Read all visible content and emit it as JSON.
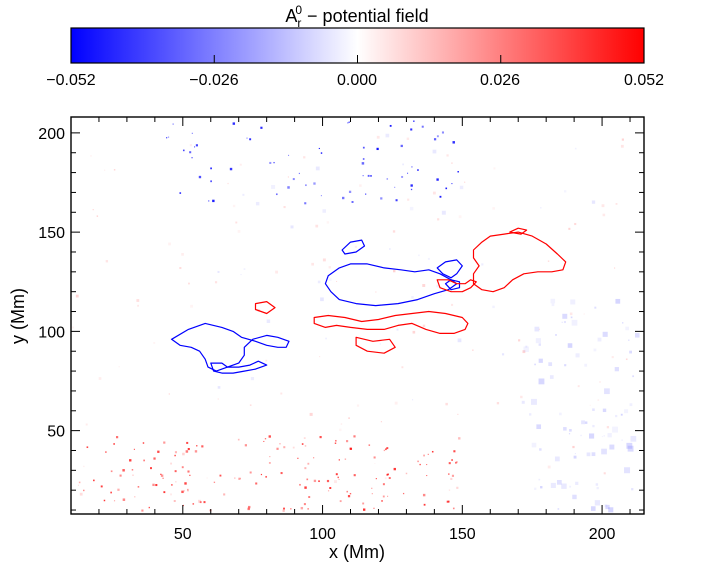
{
  "colorbar": {
    "title_main": "A",
    "title_sub": "r",
    "title_sup": "0",
    "title_rest": "  − potential field",
    "tick_labels": [
      "−0.052",
      "−0.026",
      "0.000",
      "0.026",
      "0.052"
    ],
    "colors": {
      "negative": "#0000ff",
      "zero": "#ffffff",
      "positive": "#ff0000"
    }
  },
  "chart_data": {
    "type": "heatmap",
    "title": "A_r^0 − potential field",
    "xlabel": "x (Mm)",
    "ylabel": "y (Mm)",
    "xlim": [
      10,
      215
    ],
    "ylim": [
      8,
      208
    ],
    "xticks": [
      50,
      100,
      150,
      200
    ],
    "yticks": [
      50,
      100,
      150,
      200
    ],
    "xtick_labels": [
      "50",
      "100",
      "150",
      "200"
    ],
    "ytick_labels": [
      "50",
      "100",
      "150",
      "200"
    ],
    "color_range": [
      -0.052,
      0.052
    ],
    "colormap": "blue-white-red",
    "colorbar_ticks": [
      -0.052,
      -0.026,
      0.0,
      0.026,
      0.052
    ],
    "grid": false,
    "contours": [
      {
        "polarity": "negative",
        "color": "#0000ff",
        "paths": [
          [
            [
              46,
              96
            ],
            [
              52,
              101
            ],
            [
              58,
              104
            ],
            [
              64,
              102
            ],
            [
              68,
              100
            ],
            [
              71,
              97
            ],
            [
              76,
              95
            ],
            [
              80,
              93
            ],
            [
              84,
              92
            ],
            [
              87,
              92
            ],
            [
              88,
              95
            ],
            [
              84,
              97
            ],
            [
              80,
              98
            ],
            [
              75,
              96
            ],
            [
              72,
              92
            ],
            [
              72,
              88
            ],
            [
              70,
              84
            ],
            [
              66,
              82
            ],
            [
              62,
              80
            ],
            [
              59,
              82
            ],
            [
              58,
              86
            ],
            [
              56,
              90
            ],
            [
              53,
              92
            ],
            [
              49,
              93
            ],
            [
              46,
              96
            ]
          ],
          [
            [
              60,
              84
            ],
            [
              64,
              84
            ],
            [
              66,
              82
            ],
            [
              70,
              82
            ],
            [
              74,
              83
            ],
            [
              77,
              85
            ],
            [
              80,
              83
            ],
            [
              76,
              81
            ],
            [
              72,
              80
            ],
            [
              68,
              79
            ],
            [
              64,
              79
            ],
            [
              61,
              80
            ],
            [
              60,
              84
            ]
          ],
          [
            [
              102,
              128
            ],
            [
              106,
              132
            ],
            [
              110,
              134
            ],
            [
              116,
              134
            ],
            [
              122,
              132
            ],
            [
              128,
              131
            ],
            [
              133,
              130
            ],
            [
              138,
              131
            ],
            [
              142,
              129
            ],
            [
              146,
              126
            ],
            [
              148,
              124
            ],
            [
              145,
              121
            ],
            [
              140,
              119
            ],
            [
              134,
              116
            ],
            [
              127,
              114
            ],
            [
              119,
              113
            ],
            [
              112,
              114
            ],
            [
              106,
              116
            ],
            [
              103,
              120
            ],
            [
              101,
              124
            ],
            [
              102,
              128
            ]
          ],
          [
            [
              107,
              141
            ],
            [
              110,
              145
            ],
            [
              114,
              146
            ],
            [
              115,
              143
            ],
            [
              112,
              140
            ],
            [
              108,
              139
            ],
            [
              107,
              141
            ]
          ],
          [
            [
              141,
              132
            ],
            [
              144,
              135
            ],
            [
              148,
              136
            ],
            [
              150,
              133
            ],
            [
              148,
              129
            ],
            [
              146,
              127
            ],
            [
              143,
              129
            ],
            [
              141,
              132
            ]
          ],
          [
            [
              144,
              124
            ],
            [
              146,
              126
            ],
            [
              149,
              125
            ],
            [
              149,
              122
            ],
            [
              146,
              121
            ],
            [
              144,
              124
            ]
          ]
        ]
      },
      {
        "polarity": "positive",
        "color": "#ff0000",
        "paths": [
          [
            [
              97,
              107
            ],
            [
              102,
              108
            ],
            [
              108,
              107
            ],
            [
              114,
              105
            ],
            [
              120,
              106
            ],
            [
              126,
              108
            ],
            [
              132,
              109
            ],
            [
              138,
              110
            ],
            [
              144,
              109
            ],
            [
              150,
              107
            ],
            [
              152,
              104
            ],
            [
              151,
              101
            ],
            [
              147,
              99
            ],
            [
              142,
              99
            ],
            [
              137,
              101
            ],
            [
              132,
              104
            ],
            [
              127,
              103
            ],
            [
              122,
              101
            ],
            [
              116,
              101
            ],
            [
              110,
              102
            ],
            [
              105,
              103
            ],
            [
              101,
              102
            ],
            [
              97,
              104
            ],
            [
              97,
              107
            ]
          ],
          [
            [
              112,
              97
            ],
            [
              118,
              95
            ],
            [
              124,
              96
            ],
            [
              126,
              92
            ],
            [
              122,
              89
            ],
            [
              116,
              90
            ],
            [
              112,
              93
            ],
            [
              112,
              97
            ]
          ],
          [
            [
              76,
              114
            ],
            [
              80,
              115
            ],
            [
              83,
              112
            ],
            [
              80,
              109
            ],
            [
              76,
              111
            ],
            [
              76,
              114
            ]
          ],
          [
            [
              165,
              149
            ],
            [
              170,
              150
            ],
            [
              175,
              148
            ],
            [
              180,
              144
            ],
            [
              184,
              139
            ],
            [
              187,
              135
            ],
            [
              186,
              131
            ],
            [
              182,
              130
            ],
            [
              177,
              130
            ],
            [
              172,
              129
            ],
            [
              168,
              126
            ],
            [
              165,
              122
            ],
            [
              161,
              120
            ],
            [
              157,
              121
            ],
            [
              154,
              124
            ],
            [
              154,
              129
            ],
            [
              156,
              133
            ],
            [
              154,
              137
            ],
            [
              154,
              141
            ],
            [
              157,
              145
            ],
            [
              160,
              148
            ],
            [
              165,
              149
            ]
          ],
          [
            [
              167,
              150
            ],
            [
              170,
              152
            ],
            [
              173,
              151
            ],
            [
              171,
              149
            ],
            [
              167,
              150
            ]
          ],
          [
            [
              141,
              126
            ],
            [
              145,
              126
            ],
            [
              148,
              124
            ],
            [
              151,
              124
            ],
            [
              153,
              126
            ],
            [
              155,
              125
            ],
            [
              153,
              122
            ],
            [
              150,
              120
            ],
            [
              146,
              120
            ],
            [
              142,
              122
            ],
            [
              141,
              126
            ]
          ]
        ]
      }
    ]
  }
}
